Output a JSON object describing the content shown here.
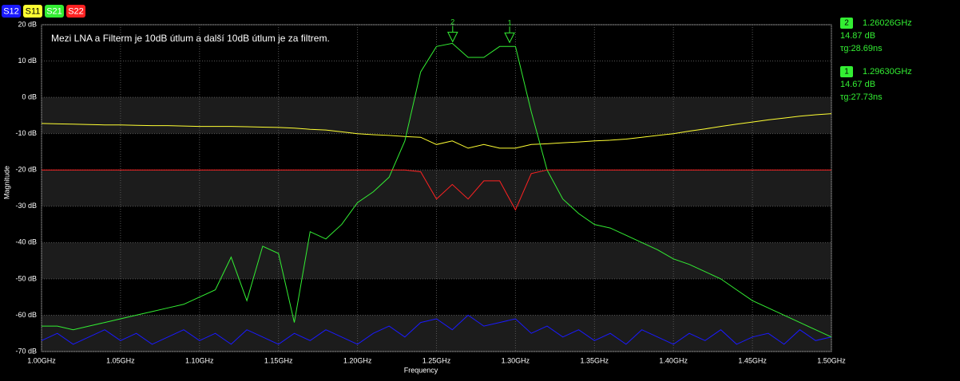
{
  "chart_data": {
    "type": "line",
    "annotation": "Mezi LNA a Filterm je 10dB útlum a další 10dB útlum je za filtrem.",
    "xlabel": "Frequency",
    "ylabel": "Magnitude",
    "xlim": [
      1.0,
      1.5
    ],
    "ylim": [
      -70,
      20
    ],
    "grid": true,
    "xticks": [
      {
        "value": 1.0,
        "label": "1.00GHz"
      },
      {
        "value": 1.05,
        "label": "1.05GHz"
      },
      {
        "value": 1.1,
        "label": "1.10GHz"
      },
      {
        "value": 1.15,
        "label": "1.15GHz"
      },
      {
        "value": 1.2,
        "label": "1.20GHz"
      },
      {
        "value": 1.25,
        "label": "1.25GHz"
      },
      {
        "value": 1.3,
        "label": "1.30GHz"
      },
      {
        "value": 1.35,
        "label": "1.35GHz"
      },
      {
        "value": 1.4,
        "label": "1.40GHz"
      },
      {
        "value": 1.45,
        "label": "1.45GHz"
      },
      {
        "value": 1.5,
        "label": "1.50GHz"
      }
    ],
    "yticks": [
      {
        "value": 20,
        "label": "20 dB"
      },
      {
        "value": 10,
        "label": "10 dB"
      },
      {
        "value": 0,
        "label": "0 dB"
      },
      {
        "value": -10,
        "label": "-10 dB"
      },
      {
        "value": -20,
        "label": "-20 dB"
      },
      {
        "value": -30,
        "label": "-30 dB"
      },
      {
        "value": -40,
        "label": "-40 dB"
      },
      {
        "value": -50,
        "label": "-50 dB"
      },
      {
        "value": -60,
        "label": "-60 dB"
      },
      {
        "value": -70,
        "label": "-70 dB"
      }
    ],
    "x": [
      1.0,
      1.01,
      1.02,
      1.03,
      1.04,
      1.05,
      1.06,
      1.07,
      1.08,
      1.09,
      1.1,
      1.11,
      1.12,
      1.13,
      1.14,
      1.15,
      1.16,
      1.17,
      1.18,
      1.19,
      1.2,
      1.21,
      1.22,
      1.23,
      1.24,
      1.25,
      1.26,
      1.27,
      1.28,
      1.29,
      1.3,
      1.31,
      1.32,
      1.33,
      1.34,
      1.35,
      1.36,
      1.37,
      1.38,
      1.39,
      1.4,
      1.41,
      1.42,
      1.43,
      1.44,
      1.45,
      1.46,
      1.47,
      1.48,
      1.49,
      1.5
    ],
    "series": [
      {
        "name": "S12",
        "color": "#1a1aff",
        "values": [
          -67,
          -65,
          -68,
          -66,
          -64,
          -67,
          -65,
          -68,
          -66,
          -64,
          -67,
          -65,
          -68,
          -64,
          -66,
          -68,
          -65,
          -67,
          -64,
          -66,
          -68,
          -65,
          -63,
          -66,
          -62,
          -61,
          -64,
          -60,
          -63,
          -62,
          -61,
          -65,
          -63,
          -66,
          -64,
          -67,
          -65,
          -68,
          -64,
          -66,
          -68,
          -65,
          -67,
          -64,
          -68,
          -66,
          -65,
          -68,
          -64,
          -67,
          -66
        ]
      },
      {
        "name": "S11",
        "color": "#ffff33",
        "values": [
          -7.2,
          -7.3,
          -7.4,
          -7.5,
          -7.6,
          -7.6,
          -7.7,
          -7.8,
          -7.8,
          -7.9,
          -8,
          -8,
          -8,
          -8.1,
          -8.2,
          -8.3,
          -8.5,
          -8.8,
          -9,
          -9.5,
          -10,
          -10.3,
          -10.5,
          -10.8,
          -11,
          -13,
          -12,
          -14,
          -13,
          -14,
          -14,
          -13,
          -12.8,
          -12.5,
          -12.3,
          -12,
          -11.8,
          -11.5,
          -11,
          -10.5,
          -10,
          -9.3,
          -8.7,
          -8,
          -7.4,
          -6.8,
          -6.2,
          -5.7,
          -5.2,
          -4.8,
          -4.5
        ]
      },
      {
        "name": "S21",
        "color": "#33ee33",
        "values": [
          -63,
          -63,
          -64,
          -63,
          -62,
          -61,
          -60,
          -59,
          -58,
          -57,
          -55,
          -53,
          -44,
          -56,
          -41,
          -43,
          -62,
          -37,
          -39,
          -35,
          -29,
          -26,
          -22,
          -12,
          7,
          14,
          14.87,
          11,
          11,
          14,
          14,
          -4,
          -20,
          -28,
          -32,
          -35,
          -36,
          -38,
          -40,
          -42,
          -44.5,
          -46,
          -48,
          -50,
          -53,
          -56,
          -58,
          -60,
          -62,
          -64,
          -66
        ]
      },
      {
        "name": "S22",
        "color": "#ff2222",
        "values": [
          -20,
          -20,
          -20,
          -20,
          -20,
          -20,
          -20,
          -20,
          -20,
          -20,
          -20,
          -20,
          -20,
          -20,
          -20,
          -20,
          -20,
          -20,
          -20,
          -20,
          -20,
          -20,
          -20,
          -20,
          -20.5,
          -28,
          -24,
          -28,
          -23,
          -23,
          -31,
          -21,
          -20,
          -20,
          -20,
          -20,
          -20,
          -20,
          -20,
          -20,
          -20,
          -20,
          -20,
          -20,
          -20,
          -20,
          -20,
          -20,
          -20,
          -20,
          -20
        ]
      }
    ],
    "markers": [
      {
        "label": "2",
        "x": {
          "value": 1.26026,
          "label": "1.26026GHz"
        },
        "y": {
          "value": 14.87,
          "label": "14.87 dB"
        },
        "delay": "τg:28.69ns"
      },
      {
        "label": "1",
        "x": {
          "value": 1.2963,
          "label": "1.29630GHz"
        },
        "y": {
          "value": 14.67,
          "label": "14.67 dB"
        },
        "delay": "τg:27.73ns"
      }
    ]
  }
}
